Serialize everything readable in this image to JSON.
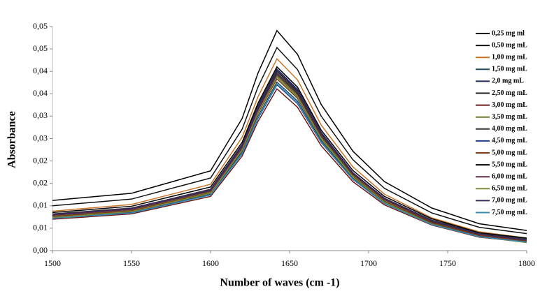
{
  "chart_data": {
    "type": "line",
    "x_label": "Number of waves (cm -1)",
    "y_label": "Absorbance",
    "x": [
      1500,
      1550,
      1600,
      1620,
      1630,
      1642,
      1655,
      1670,
      1690,
      1710,
      1740,
      1770,
      1800
    ],
    "xlim": [
      1500,
      1800
    ],
    "xticks": [
      1500,
      1550,
      1600,
      1650,
      1700,
      1750,
      1800
    ],
    "ylim": [
      0,
      0.05
    ],
    "yticks": [
      {
        "value": 0,
        "label": "0,00"
      },
      {
        "value": 0.005,
        "label": "0,01"
      },
      {
        "value": 0.01,
        "label": "0,01"
      },
      {
        "value": 0.015,
        "label": "0,02"
      },
      {
        "value": 0.02,
        "label": "0,02"
      },
      {
        "value": 0.025,
        "label": "0,03"
      },
      {
        "value": 0.03,
        "label": "0,03"
      },
      {
        "value": 0.035,
        "label": "0,04"
      },
      {
        "value": 0.04,
        "label": "0,04"
      },
      {
        "value": 0.045,
        "label": "0,05"
      },
      {
        "value": 0.05,
        "label": "0,05"
      }
    ],
    "legend": "upper right",
    "series": [
      {
        "name": "0,25 mg ml",
        "color": "#000000",
        "values": [
          0.0112,
          0.0128,
          0.0178,
          0.0295,
          0.0396,
          0.0491,
          0.0438,
          0.0326,
          0.0222,
          0.0154,
          0.0095,
          0.006,
          0.0045
        ]
      },
      {
        "name": "0,50 mg mL",
        "color": "#111111",
        "values": [
          0.01,
          0.0115,
          0.0162,
          0.0271,
          0.0365,
          0.0453,
          0.0404,
          0.03,
          0.0203,
          0.0139,
          0.0084,
          0.0052,
          0.0038
        ]
      },
      {
        "name": "1,00 mg mL",
        "color": "#c8752a",
        "values": [
          0.0088,
          0.0103,
          0.0148,
          0.0253,
          0.0343,
          0.0428,
          0.0381,
          0.028,
          0.0187,
          0.0126,
          0.0073,
          0.0042,
          0.0028
        ]
      },
      {
        "name": "1,50 mg mL",
        "color": "#1f4e5a",
        "values": [
          0.0075,
          0.0088,
          0.0127,
          0.022,
          0.03,
          0.0376,
          0.0334,
          0.0245,
          0.0162,
          0.0108,
          0.0061,
          0.0034,
          0.0022
        ]
      },
      {
        "name": "2,0 mg mL",
        "color": "#1f2a5a",
        "values": [
          0.008,
          0.0094,
          0.0137,
          0.0237,
          0.0324,
          0.0405,
          0.036,
          0.0264,
          0.0174,
          0.0116,
          0.0066,
          0.0035,
          0.0023
        ]
      },
      {
        "name": "2,50 mg mL",
        "color": "#222222",
        "values": [
          0.0078,
          0.0092,
          0.0134,
          0.0234,
          0.032,
          0.04,
          0.0355,
          0.026,
          0.0172,
          0.0114,
          0.0064,
          0.0034,
          0.0021
        ]
      },
      {
        "name": "3,00 mg mL",
        "color": "#6b1a1a",
        "values": [
          0.007,
          0.0082,
          0.0121,
          0.0211,
          0.0288,
          0.0361,
          0.032,
          0.0234,
          0.0154,
          0.0102,
          0.0057,
          0.003,
          0.0019
        ]
      },
      {
        "name": "3,50 mg mL",
        "color": "#6b7a2a",
        "values": [
          0.0077,
          0.009,
          0.0131,
          0.0228,
          0.0311,
          0.039,
          0.0346,
          0.0253,
          0.0167,
          0.0111,
          0.0062,
          0.0034,
          0.0021
        ]
      },
      {
        "name": "4,00 mg mL",
        "color": "#333333",
        "values": [
          0.0082,
          0.0095,
          0.0136,
          0.0233,
          0.0317,
          0.0396,
          0.0352,
          0.0259,
          0.0173,
          0.0117,
          0.0068,
          0.0039,
          0.0026
        ]
      },
      {
        "name": "4,50 mg mL",
        "color": "#1f3f8f",
        "values": [
          0.0073,
          0.0085,
          0.0125,
          0.0216,
          0.0295,
          0.037,
          0.0328,
          0.0241,
          0.0159,
          0.0106,
          0.0059,
          0.0032,
          0.002
        ]
      },
      {
        "name": "5,00 mg mL",
        "color": "#7a3b16",
        "values": [
          0.0076,
          0.0089,
          0.0129,
          0.0224,
          0.0306,
          0.0383,
          0.034,
          0.0249,
          0.0165,
          0.011,
          0.0062,
          0.0034,
          0.0021
        ]
      },
      {
        "name": "5,50 mg mL",
        "color": "#000000",
        "values": [
          0.0085,
          0.0099,
          0.0142,
          0.0242,
          0.0329,
          0.041,
          0.0365,
          0.0269,
          0.0179,
          0.0121,
          0.0071,
          0.004,
          0.0028
        ]
      },
      {
        "name": "6,00 mg mL",
        "color": "#5a2a4a",
        "values": [
          0.0079,
          0.0092,
          0.0133,
          0.023,
          0.0314,
          0.0393,
          0.0349,
          0.0256,
          0.017,
          0.0114,
          0.0065,
          0.0036,
          0.0023
        ]
      },
      {
        "name": "6,50 mg mL",
        "color": "#7a8a3a",
        "values": [
          0.0074,
          0.0087,
          0.0128,
          0.0225,
          0.0308,
          0.0387,
          0.0343,
          0.025,
          0.0164,
          0.0108,
          0.0059,
          0.0031,
          0.0018
        ]
      },
      {
        "name": "7,00 mg mL",
        "color": "#3a2a5a",
        "values": [
          0.0081,
          0.0094,
          0.0137,
          0.0236,
          0.0321,
          0.0402,
          0.0357,
          0.0262,
          0.0174,
          0.0116,
          0.0066,
          0.0037,
          0.0024
        ]
      },
      {
        "name": "7,50 mg mL",
        "color": "#3a8ab0",
        "values": [
          0.0072,
          0.0084,
          0.0124,
          0.0217,
          0.0297,
          0.0372,
          0.033,
          0.0241,
          0.0159,
          0.0105,
          0.0058,
          0.0031,
          0.0019
        ]
      }
    ]
  }
}
